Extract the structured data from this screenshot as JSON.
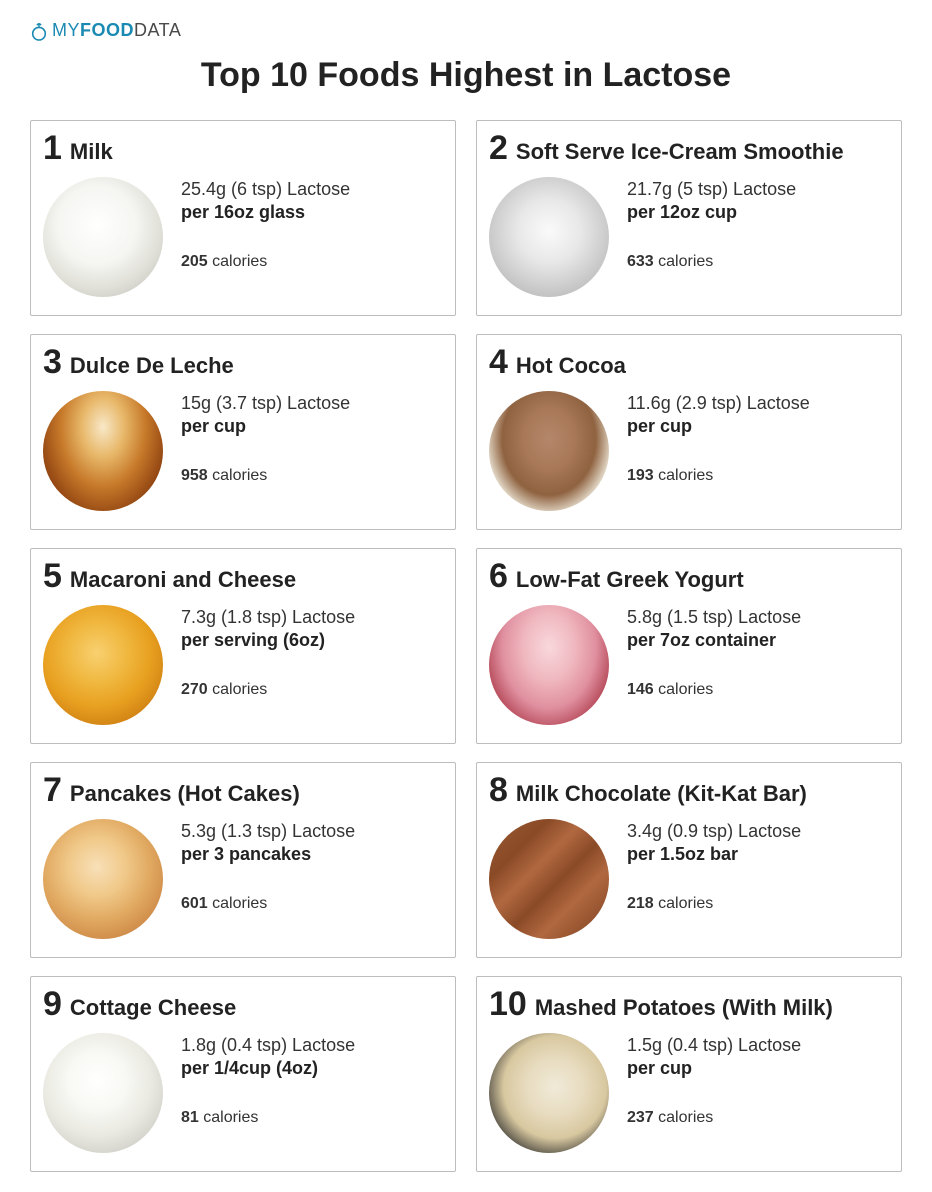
{
  "logo": {
    "part1": "MY",
    "part2": "FOOD",
    "part3": "DATA",
    "icon_color": "#1b8ab3"
  },
  "title": "Top 10 Foods Highest in Lactose",
  "colors": {
    "border": "#bdbdbd",
    "text": "#222222",
    "brand": "#1b8ab3"
  },
  "foods": [
    {
      "rank": "1",
      "name": "Milk",
      "lactose": "25.4g (6 tsp) Lactose",
      "serving": "per 16oz glass",
      "calories_num": "205",
      "calories_word": " calories",
      "thumb_gradient": "radial-gradient(circle at 45% 40%, #ffffff 0%, #f5f5f2 40%, #e0e0d8 65%, #b8b8b0 100%)"
    },
    {
      "rank": "2",
      "name": "Soft Serve Ice-Cream Smoothie",
      "lactose": "21.7g (5 tsp) Lactose",
      "serving": "per 12oz cup",
      "calories_num": "633",
      "calories_word": " calories",
      "thumb_gradient": "radial-gradient(circle at 50% 45%, #fafafa 0%, #e8e8e8 35%, #d0d0d0 60%, #a8a8a8 100%)"
    },
    {
      "rank": "3",
      "name": "Dulce De Leche",
      "lactose": "15g (3.7 tsp) Lactose",
      "serving": "per cup",
      "calories_num": "958",
      "calories_word": " calories",
      "thumb_gradient": "radial-gradient(ellipse at 50% 30%, #f8e8c8 0%, #e8b86a 25%, #c77a2a 50%, #8b3e0e 80%, #5a2408 100%)"
    },
    {
      "rank": "4",
      "name": "Hot Cocoa",
      "lactose": "11.6g (2.9 tsp) Lactose",
      "serving": "per cup",
      "calories_num": "193",
      "calories_word": " calories",
      "thumb_gradient": "radial-gradient(ellipse at 50% 40%, #b5876a 0%, #a87858 30%, #8f6240 55%, #e8e0d0 75%, #d8d0c0 100%)"
    },
    {
      "rank": "5",
      "name": "Macaroni and Cheese",
      "lactose": "7.3g (1.8 tsp) Lactose",
      "serving": "per serving (6oz)",
      "calories_num": "270",
      "calories_word": " calories",
      "thumb_gradient": "radial-gradient(circle at 45% 40%, #f8d070 0%, #f0b840 30%, #e8a020 55%, #c87810 85%, #a05800 100%)"
    },
    {
      "rank": "6",
      "name": "Low-Fat Greek Yogurt",
      "lactose": "5.8g (1.5 tsp) Lactose",
      "serving": "per 7oz container",
      "calories_num": "146",
      "calories_word": " calories",
      "thumb_gradient": "radial-gradient(ellipse at 50% 35%, #f8d8dc 0%, #f0b8c0 30%, #e090a0 55%, #b04050 80%, #701820 100%)"
    },
    {
      "rank": "7",
      "name": "Pancakes (Hot Cakes)",
      "lactose": "5.3g (1.3 tsp) Lactose",
      "serving": "per 3 pancakes",
      "calories_num": "601",
      "calories_word": " calories",
      "thumb_gradient": "radial-gradient(circle at 45% 40%, #f8e0b8 0%, #f0c888 30%, #e0a860 55%, #c88040 85%, #a06028 100%)"
    },
    {
      "rank": "8",
      "name": "Milk Chocolate (Kit-Kat Bar)",
      "lactose": "3.4g (0.9 tsp) Lactose",
      "serving": "per 1.5oz bar",
      "calories_num": "218",
      "calories_word": " calories",
      "thumb_gradient": "linear-gradient(135deg, #9a5a32 0%, #8a4a26 25%, #b06840 40%, #8a4a26 55%, #b06840 70%, #7a3e1e 100%)"
    },
    {
      "rank": "9",
      "name": "Cottage Cheese",
      "lactose": "1.8g (0.4 tsp) Lactose",
      "serving": "per 1/4cup (4oz)",
      "calories_num": "81",
      "calories_word": " calories",
      "thumb_gradient": "radial-gradient(circle at 45% 40%, #ffffff 0%, #f8f8f4 30%, #eaeae2 55%, #d0d0c8 80%, #5a8040 95%, #b0b0a8 100%)"
    },
    {
      "rank": "10",
      "name": "Mashed Potatoes (With Milk)",
      "lactose": "1.5g (0.4 tsp) Lactose",
      "serving": "per cup",
      "calories_num": "237",
      "calories_word": " calories",
      "thumb_gradient": "radial-gradient(ellipse at 55% 45%, #f0ead8 0%, #e8dcc0 30%, #d8c8a0 55%, #2a2a2a 82%, #0a0a0a 100%)"
    }
  ]
}
